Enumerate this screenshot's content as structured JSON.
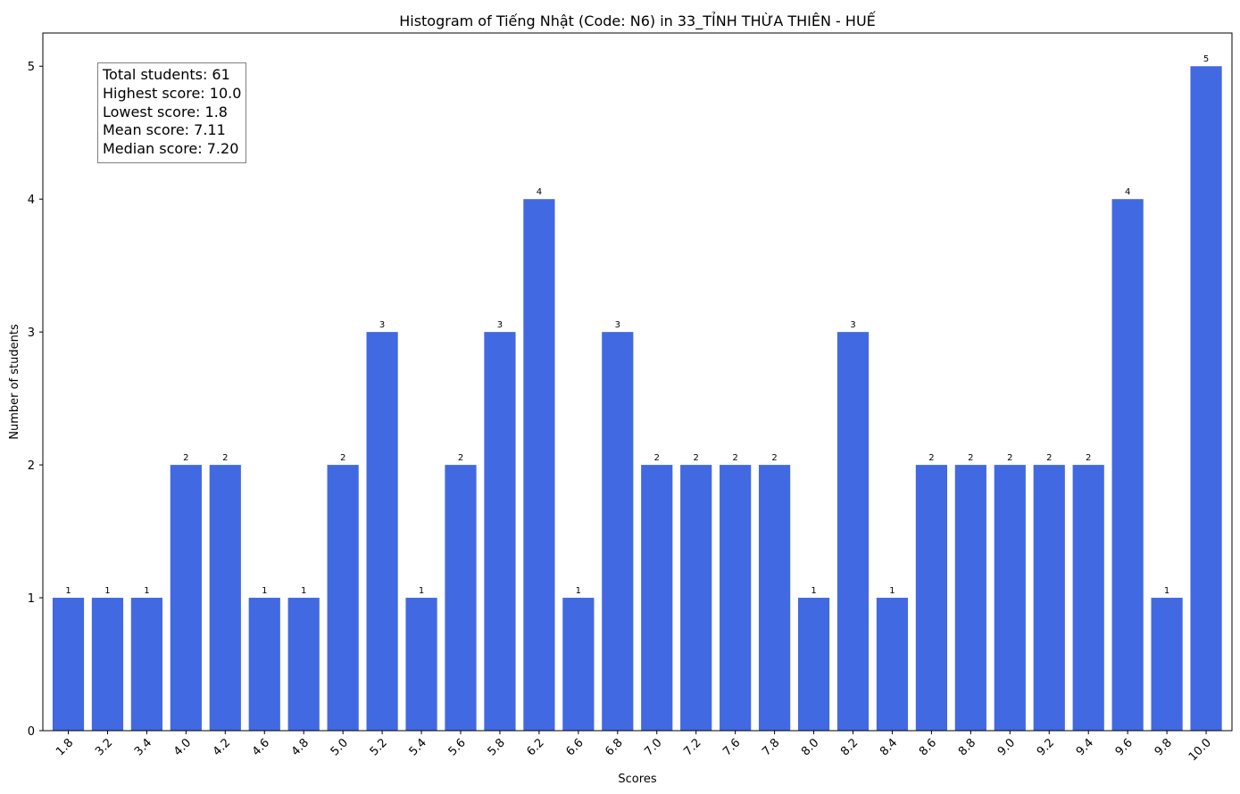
{
  "chart_data": {
    "type": "bar",
    "title": "Histogram of Tiếng Nhật (Code: N6) in 33_TỈNH THỪA THIÊN - HUẾ",
    "xlabel": "Scores",
    "ylabel": "Number of students",
    "categories": [
      "1.8",
      "3.2",
      "3.4",
      "4.0",
      "4.2",
      "4.6",
      "4.8",
      "5.0",
      "5.2",
      "5.4",
      "5.6",
      "5.8",
      "6.2",
      "6.6",
      "6.8",
      "7.0",
      "7.2",
      "7.6",
      "7.8",
      "8.0",
      "8.2",
      "8.4",
      "8.6",
      "8.8",
      "9.0",
      "9.2",
      "9.4",
      "9.6",
      "9.8",
      "10.0"
    ],
    "values": [
      1,
      1,
      1,
      2,
      2,
      1,
      1,
      2,
      3,
      1,
      2,
      3,
      4,
      1,
      3,
      2,
      2,
      2,
      2,
      1,
      3,
      1,
      2,
      2,
      2,
      2,
      2,
      4,
      1,
      5
    ],
    "yticks": [
      "0",
      "1",
      "2",
      "3",
      "4",
      "5"
    ],
    "ylim": [
      0,
      5.25
    ],
    "bar_color": "#4169e1",
    "grid": false,
    "data_labels": true
  },
  "stats": {
    "total": "Total students: 61",
    "highest": "Highest score: 10.0",
    "lowest": "Lowest score: 1.8",
    "mean": "Mean score: 7.11",
    "median": "Median score: 7.20"
  }
}
